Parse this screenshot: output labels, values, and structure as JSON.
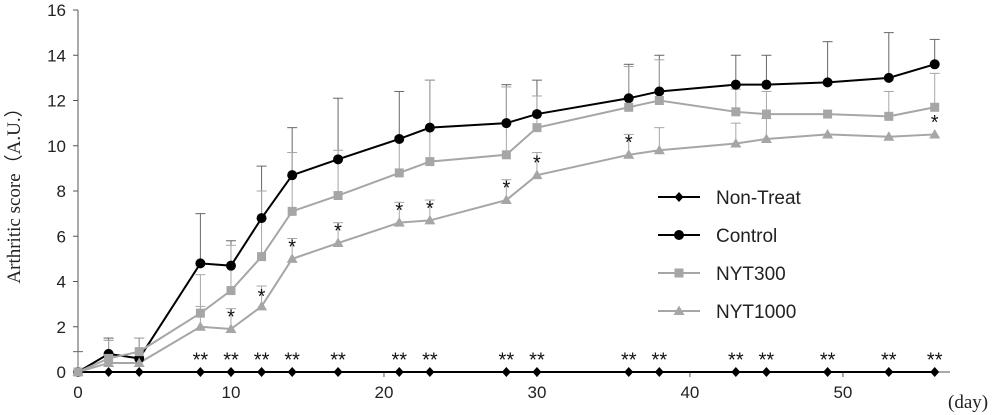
{
  "chart_data": {
    "type": "line",
    "title": "",
    "ylabel": "Arthritic score（A.U.）",
    "xunit": "(day)",
    "xlim": [
      0,
      57
    ],
    "ylim": [
      0,
      16
    ],
    "xticks": [
      0,
      10,
      20,
      30,
      40,
      50
    ],
    "yticks": [
      0,
      2,
      4,
      6,
      8,
      10,
      12,
      14,
      16
    ],
    "grid": false,
    "legend_position": "right",
    "series": [
      {
        "name": "Non-Treat",
        "color": "#000000",
        "marker": "diamond",
        "x": [
          0,
          2,
          4,
          8,
          10,
          12,
          14,
          17,
          21,
          23,
          28,
          30,
          36,
          38,
          43,
          45,
          49,
          53,
          56
        ],
        "y": [
          0,
          0,
          0,
          0,
          0,
          0,
          0,
          0,
          0,
          0,
          0,
          0,
          0,
          0,
          0,
          0,
          0,
          0,
          0
        ],
        "err": [
          0.9,
          0,
          0,
          0,
          0,
          0,
          0,
          0,
          0,
          0,
          0,
          0,
          0,
          0,
          0,
          0,
          0,
          0,
          0
        ]
      },
      {
        "name": "Control",
        "color": "#000000",
        "marker": "circle",
        "x": [
          0,
          2,
          4,
          8,
          10,
          12,
          14,
          17,
          21,
          23,
          28,
          30,
          36,
          38,
          43,
          45,
          49,
          53,
          56
        ],
        "y": [
          0,
          0.8,
          0.6,
          4.8,
          4.7,
          6.8,
          8.7,
          9.4,
          10.3,
          10.8,
          11.0,
          11.4,
          12.1,
          12.4,
          12.7,
          12.7,
          12.8,
          13.0,
          13.6
        ],
        "err": [
          0,
          0.7,
          0.9,
          2.2,
          1.1,
          2.3,
          2.1,
          2.7,
          2.1,
          2.1,
          1.7,
          1.5,
          1.5,
          1.6,
          1.3,
          1.3,
          1.8,
          2.0,
          1.1
        ]
      },
      {
        "name": "NYT300",
        "color": "#a6a6a6",
        "marker": "square",
        "x": [
          0,
          2,
          4,
          8,
          10,
          12,
          14,
          17,
          21,
          23,
          28,
          30,
          36,
          38,
          43,
          45,
          49,
          53,
          56
        ],
        "y": [
          0,
          0.6,
          0.9,
          2.6,
          3.6,
          5.1,
          7.1,
          7.8,
          8.8,
          9.3,
          9.6,
          10.8,
          11.7,
          12.0,
          11.5,
          11.4,
          11.4,
          11.3,
          11.7
        ],
        "err": [
          0,
          0.8,
          0.6,
          1.7,
          2.0,
          2.9,
          2.6,
          2.0,
          1.6,
          3.6,
          3.0,
          1.4,
          1.8,
          1.8,
          1.0,
          1.0,
          0.0,
          1.1,
          1.5
        ]
      },
      {
        "name": "NYT1000",
        "color": "#a6a6a6",
        "marker": "triangle",
        "x": [
          0,
          2,
          4,
          8,
          10,
          12,
          14,
          17,
          21,
          23,
          28,
          30,
          36,
          38,
          43,
          45,
          49,
          53,
          56
        ],
        "y": [
          0,
          0.4,
          0.4,
          2.0,
          1.9,
          2.9,
          5.0,
          5.7,
          6.6,
          6.7,
          7.6,
          8.7,
          9.6,
          9.8,
          10.1,
          10.3,
          10.5,
          10.4,
          10.5
        ],
        "err": [
          0,
          1.0,
          1.1,
          0.9,
          0.9,
          0.9,
          0.9,
          0.9,
          0.9,
          0.9,
          0.9,
          1.0,
          0.9,
          1.0,
          0.9,
          0.9,
          0.0,
          0.0,
          0.0
        ]
      }
    ],
    "annotations": [
      {
        "text": "*",
        "x": 10,
        "y": 2.5
      },
      {
        "text": "*",
        "x": 12,
        "y": 3.4
      },
      {
        "text": "*",
        "x": 14,
        "y": 5.6
      },
      {
        "text": "*",
        "x": 17,
        "y": 6.3
      },
      {
        "text": "*",
        "x": 21,
        "y": 7.2
      },
      {
        "text": "*",
        "x": 23,
        "y": 7.3
      },
      {
        "text": "*",
        "x": 28,
        "y": 8.2
      },
      {
        "text": "*",
        "x": 30,
        "y": 9.3
      },
      {
        "text": "*",
        "x": 36,
        "y": 10.2
      },
      {
        "text": "*",
        "x": 56,
        "y": 11.1
      },
      {
        "text": "**",
        "x": 8,
        "y": 0.6
      },
      {
        "text": "**",
        "x": 10,
        "y": 0.6
      },
      {
        "text": "**",
        "x": 12,
        "y": 0.6
      },
      {
        "text": "**",
        "x": 14,
        "y": 0.6
      },
      {
        "text": "**",
        "x": 17,
        "y": 0.6
      },
      {
        "text": "**",
        "x": 21,
        "y": 0.6
      },
      {
        "text": "**",
        "x": 23,
        "y": 0.6
      },
      {
        "text": "**",
        "x": 28,
        "y": 0.6
      },
      {
        "text": "**",
        "x": 30,
        "y": 0.6
      },
      {
        "text": "**",
        "x": 36,
        "y": 0.6
      },
      {
        "text": "**",
        "x": 38,
        "y": 0.6
      },
      {
        "text": "**",
        "x": 43,
        "y": 0.6
      },
      {
        "text": "**",
        "x": 45,
        "y": 0.6
      },
      {
        "text": "**",
        "x": 49,
        "y": 0.6
      },
      {
        "text": "**",
        "x": 53,
        "y": 0.6
      },
      {
        "text": "**",
        "x": 56,
        "y": 0.6
      }
    ]
  }
}
